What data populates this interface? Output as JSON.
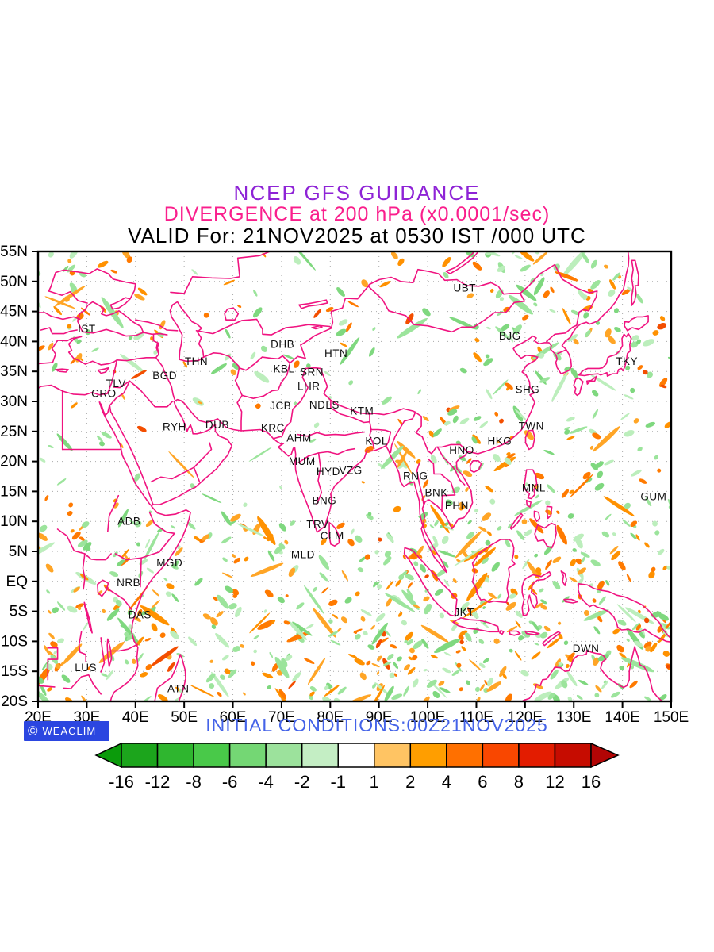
{
  "titles": {
    "line1": "NCEP GFS GUIDANCE",
    "line2": "DIVERGENCE at 200 hPa (x0.0001/sec)",
    "line3": "VALID For: 21NOV2025 at 0530 IST /000 UTC"
  },
  "footer": {
    "initial_conditions": "INITIAL CONDITIONS:00Z21NOV2025",
    "logo_symbol": "©",
    "logo_text": "WEACLIM"
  },
  "colors": {
    "title1": "#8e23d6",
    "title2": "#fa1e8c",
    "valid_text": "#000000",
    "coastline": "#f01380",
    "footer_blue": "#4463e8",
    "logo_bg": "#2b46e0",
    "grid": "#aaaaaa",
    "green_shade": "#9ce49c",
    "orange_shade": "#ffa526"
  },
  "chart_data": {
    "type": "heatmap",
    "title": "NCEP GFS GUIDANCE",
    "subtitle": "DIVERGENCE at 200 hPa (x0.0001/sec)",
    "valid_line": "VALID For: 21NOV2025 at 0530 IST /000 UTC",
    "model": "NCEP GFS",
    "variable": "Divergence",
    "level": "200 hPa",
    "units": "x0.0001/sec",
    "init_time": "00Z21NOV2025",
    "x_axis": {
      "ticks": [
        "20E",
        "30E",
        "40E",
        "50E",
        "60E",
        "70E",
        "80E",
        "90E",
        "100E",
        "110E",
        "120E",
        "130E",
        "140E",
        "150E"
      ],
      "range_deg": [
        20,
        150
      ]
    },
    "y_axis": {
      "ticks": [
        "55N",
        "50N",
        "45N",
        "40N",
        "35N",
        "30N",
        "25N",
        "20N",
        "15N",
        "10N",
        "5N",
        "EQ",
        "5S",
        "10S",
        "15S",
        "20S"
      ],
      "range_deg": [
        -20,
        55
      ]
    },
    "grid": "dotted, 10 deg lon x 5 deg lat",
    "colorbar": {
      "labels": [
        "-16",
        "-12",
        "-8",
        "-6",
        "-4",
        "-2",
        "-1",
        "1",
        "2",
        "4",
        "6",
        "8",
        "12",
        "16"
      ],
      "colors": [
        "#0b9b0b",
        "#1ca51c",
        "#2fb62f",
        "#49c949",
        "#74d774",
        "#9ce29c",
        "#c4eec4",
        "#ffffff",
        "#ffc463",
        "#ff9e00",
        "#ff7000",
        "#f94700",
        "#e31c00",
        "#c60c00",
        "#b20505"
      ]
    },
    "shading_note": "scattered cells: green = negative divergence (convergence), orange/red = positive divergence",
    "cities": [
      {
        "code": "IST",
        "lon": 30.0,
        "lat": 41.5
      },
      {
        "code": "TLV",
        "lon": 36.0,
        "lat": 32.4
      },
      {
        "code": "CRO",
        "lon": 33.5,
        "lat": 30.7
      },
      {
        "code": "BGD",
        "lon": 46.0,
        "lat": 33.7
      },
      {
        "code": "THN",
        "lon": 52.5,
        "lat": 36.1
      },
      {
        "code": "RYH",
        "lon": 48.0,
        "lat": 25.2
      },
      {
        "code": "DUB",
        "lon": 56.8,
        "lat": 25.5
      },
      {
        "code": "DHB",
        "lon": 70.2,
        "lat": 38.9
      },
      {
        "code": "KBL",
        "lon": 70.5,
        "lat": 34.8
      },
      {
        "code": "SRN",
        "lon": 76.2,
        "lat": 34.3
      },
      {
        "code": "HTN",
        "lon": 81.2,
        "lat": 37.4
      },
      {
        "code": "LHR",
        "lon": 75.6,
        "lat": 31.9
      },
      {
        "code": "JCB",
        "lon": 69.8,
        "lat": 28.7
      },
      {
        "code": "NDLS",
        "lon": 78.8,
        "lat": 28.8
      },
      {
        "code": "KTM",
        "lon": 86.5,
        "lat": 27.8
      },
      {
        "code": "KRC",
        "lon": 68.2,
        "lat": 25.0
      },
      {
        "code": "AHM",
        "lon": 73.6,
        "lat": 23.3
      },
      {
        "code": "KOL",
        "lon": 89.5,
        "lat": 22.8
      },
      {
        "code": "MUM",
        "lon": 74.2,
        "lat": 19.4
      },
      {
        "code": "HYD",
        "lon": 79.6,
        "lat": 17.7
      },
      {
        "code": "VZG",
        "lon": 84.2,
        "lat": 17.9
      },
      {
        "code": "BNG",
        "lon": 78.8,
        "lat": 12.9
      },
      {
        "code": "TRV",
        "lon": 77.4,
        "lat": 8.9
      },
      {
        "code": "CLM",
        "lon": 80.4,
        "lat": 7.0
      },
      {
        "code": "MLD",
        "lon": 74.4,
        "lat": 3.9
      },
      {
        "code": "ADB",
        "lon": 38.7,
        "lat": 9.4
      },
      {
        "code": "MGD",
        "lon": 47.0,
        "lat": 2.5
      },
      {
        "code": "NRB",
        "lon": 38.6,
        "lat": -0.8
      },
      {
        "code": "DAS",
        "lon": 40.9,
        "lat": -6.2
      },
      {
        "code": "LUS",
        "lon": 29.8,
        "lat": -15.0
      },
      {
        "code": "ATN",
        "lon": 48.8,
        "lat": -18.5
      },
      {
        "code": "RNG",
        "lon": 97.5,
        "lat": 17.0
      },
      {
        "code": "BNK",
        "lon": 101.8,
        "lat": 14.2
      },
      {
        "code": "PHN",
        "lon": 106.0,
        "lat": 12.0
      },
      {
        "code": "HNO",
        "lon": 107.0,
        "lat": 21.3
      },
      {
        "code": "HKG",
        "lon": 114.8,
        "lat": 22.8
      },
      {
        "code": "SHG",
        "lon": 120.5,
        "lat": 31.4
      },
      {
        "code": "TWN",
        "lon": 121.3,
        "lat": 25.3
      },
      {
        "code": "BJG",
        "lon": 116.9,
        "lat": 40.3
      },
      {
        "code": "UBT",
        "lon": 107.6,
        "lat": 48.3
      },
      {
        "code": "TKY",
        "lon": 140.9,
        "lat": 36.1
      },
      {
        "code": "MNL",
        "lon": 121.8,
        "lat": 15.0
      },
      {
        "code": "GUM",
        "lon": 146.4,
        "lat": 13.5
      },
      {
        "code": "JKT",
        "lon": 107.5,
        "lat": -5.8
      },
      {
        "code": "DWN",
        "lon": 132.5,
        "lat": -11.8
      }
    ]
  }
}
